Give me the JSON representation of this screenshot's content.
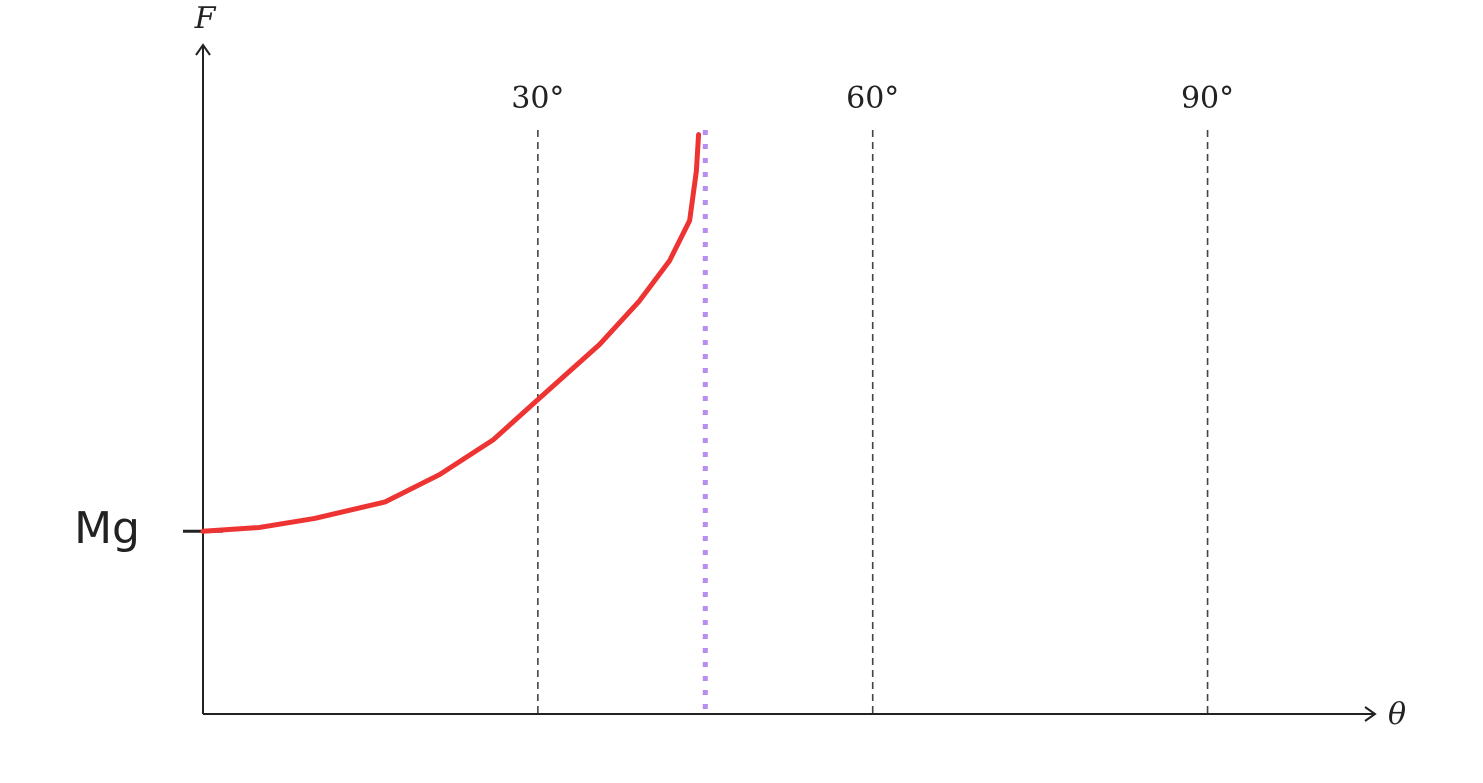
{
  "chart_data": {
    "type": "line",
    "x_label": "θ",
    "y_label": "F",
    "x": [
      0,
      5,
      10,
      16.3,
      21.2,
      26,
      30,
      35.5,
      39.1,
      41.8,
      43.6,
      44.2,
      44.4
    ],
    "values": [
      1,
      1.02,
      1.07,
      1.16,
      1.31,
      1.5,
      1.72,
      2.02,
      2.26,
      2.48,
      2.7,
      2.97,
      3.17
    ],
    "color": "#ee3333",
    "asymptote": 45,
    "asymptote_color": "#b98cf0",
    "xlim": [
      0,
      105
    ],
    "ylim": [
      0,
      3.66
    ],
    "xticks": [
      {
        "value": 30,
        "label": "30°"
      },
      {
        "value": 60,
        "label": "60°"
      },
      {
        "value": 90,
        "label": "90°"
      }
    ],
    "yticks": [
      {
        "value": 1,
        "label": "Mg"
      }
    ],
    "grid": true
  }
}
